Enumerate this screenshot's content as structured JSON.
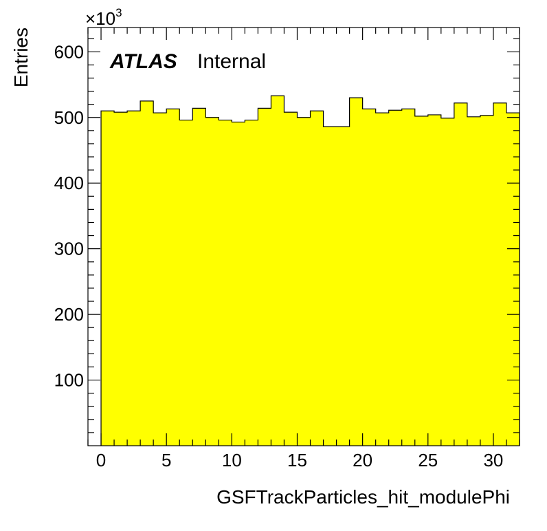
{
  "chart_data": {
    "type": "bar",
    "histogram": true,
    "xlabel": "GSFTrackParticles_hit_modulePhi",
    "ylabel": "Entries",
    "y_multiplier_label": "×10",
    "y_multiplier_exponent": "3",
    "xlim": [
      -1,
      32
    ],
    "ylim": [
      0,
      637
    ],
    "x_ticks": [
      0,
      5,
      10,
      15,
      20,
      25,
      30
    ],
    "y_ticks": [
      100,
      200,
      300,
      400,
      500,
      600
    ],
    "bin_edges": [
      0,
      1,
      2,
      3,
      4,
      5,
      6,
      7,
      8,
      9,
      10,
      11,
      12,
      13,
      14,
      15,
      16,
      17,
      18,
      19,
      20,
      21,
      22,
      23,
      24,
      25,
      26,
      27,
      28,
      29,
      30,
      31
    ],
    "values": [
      510,
      508,
      510,
      525,
      507,
      513,
      496,
      514,
      500,
      496,
      493,
      496,
      514,
      533,
      508,
      500,
      510,
      486,
      486,
      530,
      513,
      507,
      511,
      513,
      502,
      504,
      499,
      522,
      501,
      503,
      522,
      507
    ],
    "fill_color": "#ffff00",
    "line_color": "#000000",
    "atlas_label": "ATLAS",
    "atlas_status": "Internal"
  }
}
